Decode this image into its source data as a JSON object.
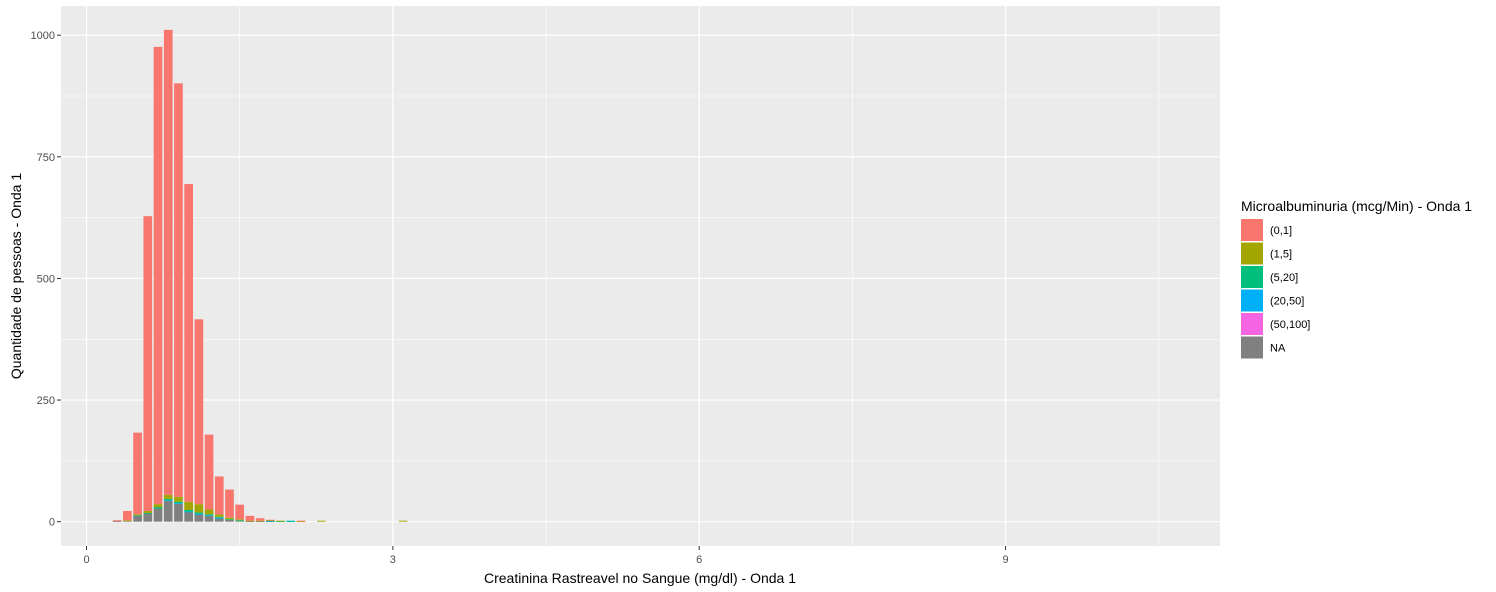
{
  "chart_data": {
    "type": "bar",
    "stacked": true,
    "xlabel": "Creatinina Rastreavel no Sangue (mg/dl) - Onda 1",
    "ylabel": "Quantidade de pessoas - Onda 1",
    "xlim": [
      -0.25,
      11.1
    ],
    "ylim": [
      -50,
      1060
    ],
    "x_ticks": [
      0,
      3,
      6,
      9
    ],
    "y_ticks": [
      0,
      250,
      500,
      750,
      1000
    ],
    "grid": true,
    "legend_position": "right",
    "legend_title": "Microalbuminuria (mcg/Min) - Onda 1",
    "bar_width": 0.085,
    "x": [
      0.3,
      0.4,
      0.5,
      0.6,
      0.7,
      0.8,
      0.9,
      1.0,
      1.1,
      1.2,
      1.3,
      1.4,
      1.5,
      1.6,
      1.7,
      1.8,
      1.9,
      2.0,
      2.1,
      2.3,
      3.1
    ],
    "series": [
      {
        "name": "NA",
        "color": "#808080",
        "values": [
          1,
          2,
          12,
          17,
          27,
          43,
          37,
          20,
          15,
          12,
          7,
          4,
          2,
          1,
          1,
          0,
          0,
          0,
          0,
          0,
          0
        ]
      },
      {
        "name": "(50,100]",
        "color": "#F564E3",
        "values": [
          0,
          0,
          0,
          0,
          0,
          0,
          0,
          0,
          0,
          0,
          0,
          0,
          0,
          0,
          0,
          0,
          0,
          0,
          0,
          0,
          0
        ]
      },
      {
        "name": "(20,50]",
        "color": "#00B0F6",
        "values": [
          0,
          0,
          0,
          0,
          0,
          1,
          1,
          1,
          1,
          1,
          1,
          0,
          0,
          0,
          0,
          1,
          0,
          1,
          0,
          0,
          0
        ]
      },
      {
        "name": "(5,20]",
        "color": "#00BF7D",
        "values": [
          0,
          0,
          1,
          1,
          3,
          3,
          3,
          3,
          3,
          2,
          2,
          1,
          1,
          0,
          0,
          1,
          1,
          1,
          0,
          0,
          0
        ]
      },
      {
        "name": "(1,5]",
        "color": "#A3A500",
        "values": [
          0,
          1,
          2,
          4,
          6,
          8,
          10,
          17,
          17,
          10,
          5,
          3,
          2,
          1,
          1,
          1,
          1,
          0,
          1,
          2,
          2
        ]
      },
      {
        "name": "(0,1]",
        "color": "#F8766D",
        "values": [
          2,
          19,
          168,
          606,
          940,
          956,
          850,
          653,
          380,
          154,
          78,
          58,
          30,
          10,
          5,
          1,
          0,
          0,
          1,
          0,
          0
        ]
      }
    ],
    "legend_order": [
      "(0,1]",
      "(1,5]",
      "(5,20]",
      "(20,50]",
      "(50,100]",
      "NA"
    ]
  }
}
